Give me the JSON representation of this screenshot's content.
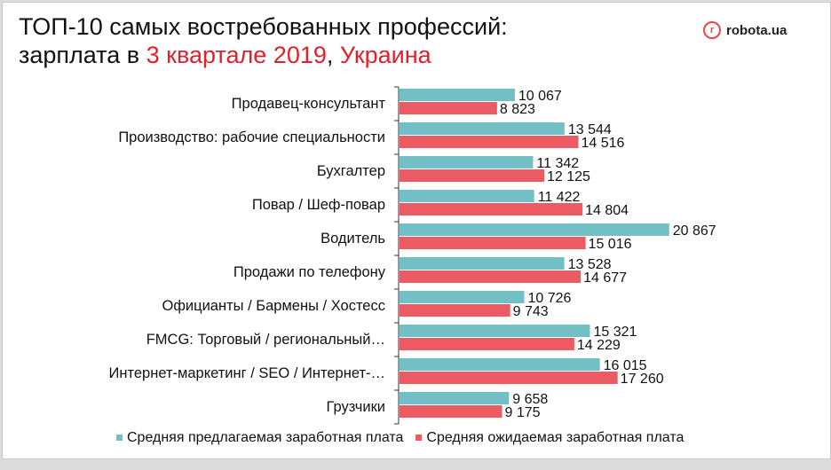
{
  "header": {
    "title_line1": "ТОП-10 самых востребованных профессий:",
    "title_line2_prefix": "зарплата в ",
    "title_line2_period": "3 квартале 2019",
    "title_line2_sep": ", ",
    "title_line2_country": "Украина",
    "logo_text": "robota.ua",
    "logo_letter": "r"
  },
  "chart_data": {
    "type": "bar",
    "orientation": "horizontal",
    "categories": [
      "Продавец-консультант",
      "Производство: рабочие специальности",
      "Бухгалтер",
      "Повар / Шеф-повар",
      "Водитель",
      "Продажи по телефону",
      "Официанты / Бармены / Хостесс",
      "FMCG: Торговый / региональный…",
      "Интернет-маркетинг / SEO / Интернет-…",
      "Грузчики"
    ],
    "series": [
      {
        "name": "Средняя предлагаемая заработная плата",
        "color": "#72c0c6",
        "values": [
          10067,
          13544,
          11342,
          11422,
          20867,
          13528,
          10726,
          15321,
          16015,
          9658
        ],
        "labels": [
          "10 067",
          "13 544",
          "11 342",
          "11 422",
          "20 867",
          "13 528",
          "10 726",
          "15 321",
          "16 015",
          "9 658"
        ]
      },
      {
        "name": "Средняя ожидаемая заработная плата",
        "color": "#ec5a64",
        "values": [
          8823,
          14516,
          12125,
          14804,
          15016,
          14677,
          9743,
          14229,
          17260,
          9175
        ],
        "labels": [
          "8 823",
          "14 516",
          "12 125",
          "14 804",
          "15 016",
          "14 677",
          "9 743",
          "14 229",
          "17 260",
          "9 175"
        ]
      }
    ],
    "xlim": [
      2000,
      21000
    ],
    "grid": false,
    "legend_position": "bottom"
  }
}
